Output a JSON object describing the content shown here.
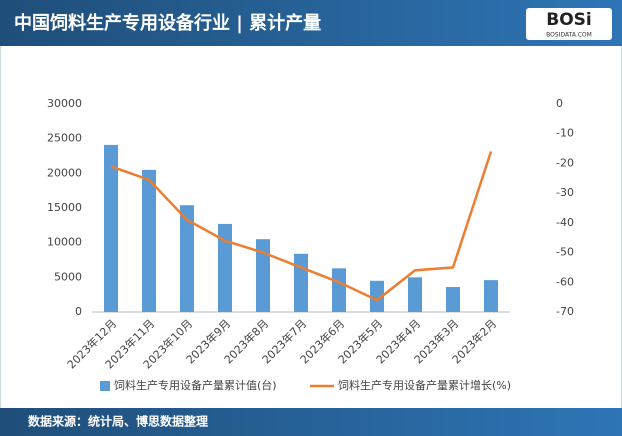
{
  "chart_data": {
    "type": "bar-line",
    "title": "中国饲料生产专用设备行业 | 累计产量",
    "source": "数据来源：统计局、博思数据整理",
    "categories": [
      "2023年12月",
      "2023年11月",
      "2023年10月",
      "2023年9月",
      "2023年8月",
      "2023年7月",
      "2023年6月",
      "2023年5月",
      "2023年4月",
      "2023年3月",
      "2023年2月"
    ],
    "series": [
      {
        "name": "饲料生产专用设备产量累计值(台)",
        "type": "bar",
        "color": "#5b9bd5",
        "values": [
          24100,
          20500,
          15400,
          12700,
          10500,
          8400,
          6300,
          4500,
          5000,
          3600,
          4600
        ]
      },
      {
        "name": "饲料生产专用设备产量累计增长(%)",
        "type": "line",
        "axis": "y2",
        "color": "#ed7d31",
        "values": [
          -21,
          -25.5,
          -39,
          -46,
          -50,
          -55,
          -60,
          -66,
          -56,
          -55,
          -16
        ]
      }
    ],
    "ylim": [
      0,
      30000
    ],
    "yticks": [
      0,
      5000,
      10000,
      15000,
      20000,
      25000,
      30000
    ],
    "y2lim": [
      -70,
      0
    ],
    "y2ticks": [
      0,
      -10,
      -20,
      -30,
      -40,
      -50,
      -60,
      -70
    ],
    "legend": "bottom"
  },
  "logo": {
    "text": "BOSi",
    "sub": "BOSIDATA.COM"
  }
}
